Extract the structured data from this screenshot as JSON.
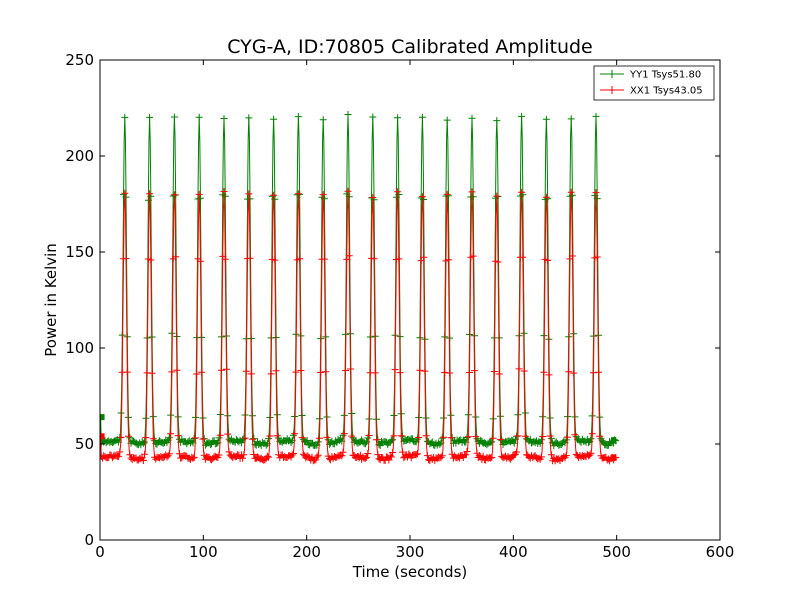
{
  "chart_data": {
    "type": "line",
    "title": "CYG-A, ID:70805 Calibrated Amplitude",
    "xlabel": "Time (seconds)",
    "ylabel": "Power in Kelvin",
    "xlim": [
      0,
      600
    ],
    "ylim": [
      0,
      250
    ],
    "xticks": [
      "0",
      "100",
      "200",
      "300",
      "400",
      "500",
      "600"
    ],
    "yticks": [
      "0",
      "50",
      "100",
      "150",
      "200",
      "250"
    ],
    "grid": false,
    "legend_position": "top-right",
    "x_range": [
      0,
      500
    ],
    "peak_times": [
      24,
      48,
      72,
      96,
      120,
      144,
      168,
      192,
      216,
      240,
      264,
      288,
      312,
      336,
      360,
      384,
      408,
      432,
      456,
      480
    ],
    "series": [
      {
        "name": "YY1 Tsys51.80",
        "color": "#008000",
        "marker": "+",
        "baseline": 51,
        "peak": 220,
        "start_value": 64,
        "end_value": 52
      },
      {
        "name": "XX1 Tsys43.05",
        "color": "#ff0000",
        "marker": "+",
        "baseline": 43,
        "peak": 180,
        "start_value": 54,
        "end_value": 43
      }
    ]
  }
}
